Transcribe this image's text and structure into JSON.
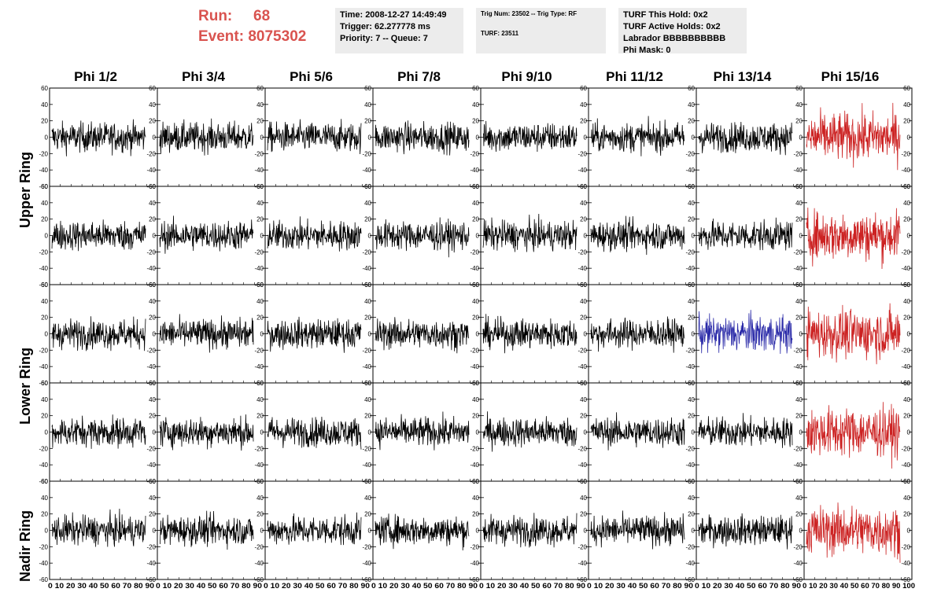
{
  "header": {
    "run_label": "Run:",
    "run_value": "68",
    "event_label": "Event:",
    "event_value": "8075302",
    "time": "Time: 2008-12-27 14:49:49",
    "trigger": "Trigger: 62.277778 ms",
    "priority": "Priority: 7 -- Queue: 7",
    "trig_num": "Trig Num: 23502 -- Trig Type: RF",
    "turf": "TURF: 23511",
    "turf_this_hold": "TURF This Hold: 0x2",
    "turf_active_holds": "TURF Active Holds: 0x2",
    "labrador": "Labrador BBBBBBBBBB",
    "phi_mask": "Phi Mask: 0"
  },
  "colors": {
    "normal": "#000000",
    "red": "#cc2222",
    "blue": "#2a2aa8",
    "title_red": "#d9534f"
  },
  "chart_data": {
    "type": "line",
    "columns": [
      "Phi 1/2",
      "Phi 3/4",
      "Phi 5/6",
      "Phi 7/8",
      "Phi 9/10",
      "Phi 11/12",
      "Phi 13/14",
      "Phi 15/16"
    ],
    "ring_labels": [
      "Upper Ring",
      "Lower Ring",
      "Nadir Ring"
    ],
    "rows": 5,
    "xlim": [
      0,
      100
    ],
    "ylim": [
      -60,
      60
    ],
    "y_ticks": [
      60,
      40,
      20,
      0,
      -20,
      -40,
      -60
    ],
    "y_tick_labels": [
      "60",
      "40",
      "20",
      "0",
      "-20",
      "-40",
      "-60"
    ],
    "x_ticks": [
      0,
      10,
      20,
      30,
      40,
      50,
      60,
      70,
      80,
      90
    ],
    "x_tick_labels_col": "0 10 20 30 40 50 60 70 80 90",
    "x_tick_labels_last": "0 10 20 30 40 50 60 70 80 90 100",
    "highlighted": [
      {
        "row": 0,
        "col": 7,
        "color": "red"
      },
      {
        "row": 1,
        "col": 7,
        "color": "red"
      },
      {
        "row": 2,
        "col": 6,
        "color": "blue"
      },
      {
        "row": 2,
        "col": 7,
        "color": "red"
      },
      {
        "row": 3,
        "col": 7,
        "color": "red"
      },
      {
        "row": 4,
        "col": 7,
        "color": "red"
      }
    ]
  }
}
